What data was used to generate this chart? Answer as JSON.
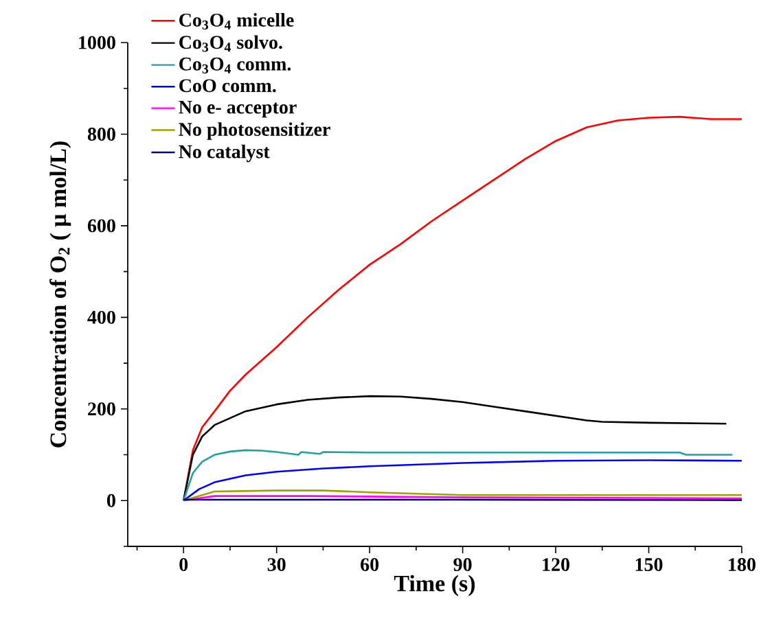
{
  "chart_data": {
    "type": "line",
    "xlabel": "Time (s)",
    "ylabel": "Concentration of O$_{2}$ ( μ mol/L)",
    "xlim": [
      -18,
      180
    ],
    "ylim": [
      -100,
      1000
    ],
    "xticks": [
      0,
      30,
      60,
      90,
      120,
      150,
      180
    ],
    "yticks": [
      0,
      200,
      400,
      600,
      800,
      1000
    ],
    "legend": "top left",
    "marker": "none",
    "line_style": "solid",
    "grid": false,
    "series": [
      {
        "name": "Co$_{3}$O$_{4}$ micelle",
        "color": "#ff0000",
        "x": [
          0,
          3,
          6,
          10,
          15,
          20,
          25,
          30,
          40,
          50,
          60,
          70,
          80,
          90,
          100,
          110,
          120,
          130,
          140,
          150,
          160,
          170,
          180
        ],
        "values": [
          0,
          110,
          160,
          195,
          240,
          275,
          305,
          335,
          400,
          460,
          515,
          560,
          610,
          655,
          700,
          745,
          785,
          815,
          830,
          836,
          838,
          833,
          833
        ]
      },
      {
        "name": "Co$_{3}$O$_{4}$ solvo.",
        "color": "#000000",
        "x": [
          0,
          3,
          6,
          10,
          20,
          30,
          40,
          50,
          60,
          70,
          80,
          90,
          100,
          110,
          120,
          130,
          135,
          150,
          175
        ],
        "values": [
          0,
          100,
          140,
          165,
          195,
          210,
          220,
          225,
          228,
          227,
          222,
          215,
          205,
          195,
          185,
          175,
          172,
          170,
          168
        ]
      },
      {
        "name": "Co$_{3}$O$_{4}$ comm.",
        "color": "#20a0a0",
        "x": [
          0,
          3,
          6,
          10,
          15,
          20,
          25,
          30,
          37,
          38,
          44,
          45,
          60,
          90,
          120,
          160,
          162,
          177
        ],
        "values": [
          0,
          60,
          85,
          100,
          107,
          110,
          109,
          106,
          100,
          106,
          102,
          106,
          105,
          105,
          105,
          105,
          100,
          100
        ]
      },
      {
        "name": "CoO comm.",
        "color": "#0000ff",
        "x": [
          0,
          5,
          10,
          20,
          30,
          45,
          60,
          90,
          120,
          150,
          180
        ],
        "values": [
          0,
          25,
          40,
          55,
          63,
          70,
          75,
          82,
          87,
          88,
          87
        ]
      },
      {
        "name": "No e- acceptor",
        "color": "#ff00ff",
        "x": [
          0,
          10,
          40,
          90,
          180
        ],
        "values": [
          0,
          10,
          10,
          7,
          5
        ]
      },
      {
        "name": "No photosensitizer",
        "color": "#a0a000",
        "x": [
          0,
          10,
          30,
          45,
          60,
          90,
          180
        ],
        "values": [
          0,
          20,
          22,
          22,
          18,
          12,
          12
        ]
      },
      {
        "name": "No catalyst",
        "color": "#000080",
        "x": [
          0,
          90,
          180
        ],
        "values": [
          2,
          2,
          1
        ]
      }
    ]
  }
}
